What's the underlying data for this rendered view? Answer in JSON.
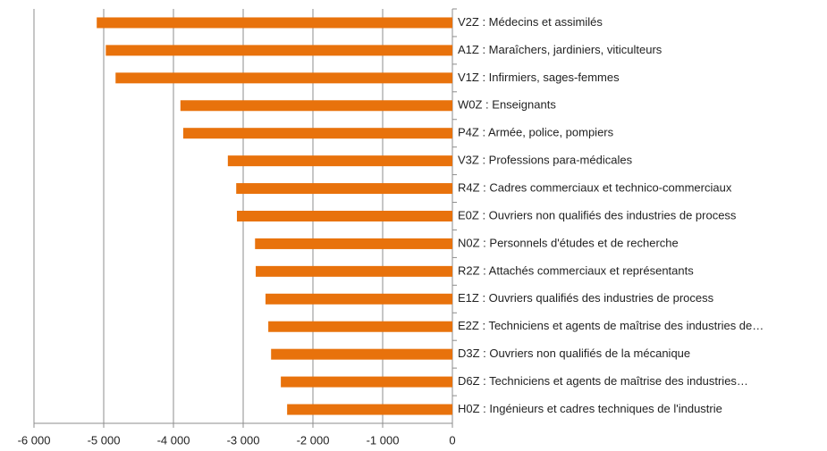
{
  "chart_data": {
    "type": "bar",
    "orientation": "horizontal",
    "categories": [
      "V2Z : Médecins et assimilés",
      "A1Z : Maraîchers, jardiniers, viticulteurs",
      "V1Z : Infirmiers, sages-femmes",
      "W0Z : Enseignants",
      "P4Z : Armée, police, pompiers",
      "V3Z : Professions para-médicales",
      "R4Z : Cadres commerciaux et technico-commerciaux",
      "E0Z : Ouvriers non qualifiés des industries de process",
      "N0Z : Personnels d'études et de recherche",
      "R2Z : Attachés commerciaux et représentants",
      "E1Z : Ouvriers qualifiés des industries de process",
      "E2Z : Techniciens et agents de maîtrise des industries de…",
      "D3Z : Ouvriers non qualifiés de la mécanique",
      "D6Z : Techniciens et agents de maîtrise des industries…",
      "H0Z : Ingénieurs et cadres techniques de l'industrie"
    ],
    "values": [
      -5100,
      -4970,
      -4830,
      -3900,
      -3860,
      -3220,
      -3100,
      -3090,
      -2830,
      -2820,
      -2680,
      -2640,
      -2600,
      -2460,
      -2370
    ],
    "color": "#e8720c",
    "xlim": [
      -6000,
      0
    ],
    "xticks": [
      {
        "value": -6000,
        "label": "-6 000"
      },
      {
        "value": -5000,
        "label": "-5 000"
      },
      {
        "value": -4000,
        "label": "-4 000"
      },
      {
        "value": -3000,
        "label": "-3 000"
      },
      {
        "value": -2000,
        "label": "-2 000"
      },
      {
        "value": -1000,
        "label": "-1 000"
      },
      0
    ],
    "grid": true
  }
}
